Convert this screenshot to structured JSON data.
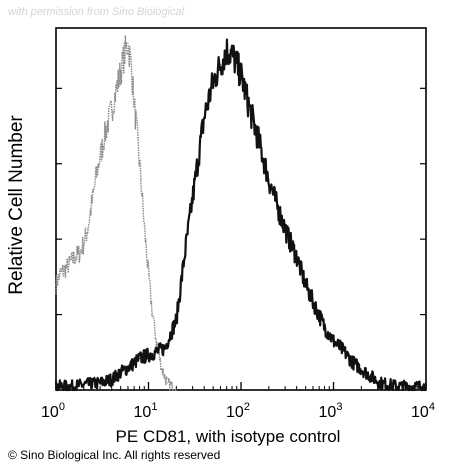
{
  "watermark": "with permission from Sino Biological",
  "copyright": "© Sino Biological Inc. All rights reserved",
  "chart_data": {
    "type": "line",
    "title": "",
    "xlabel": "PE CD81, with isotype control",
    "ylabel": "Relative Cell Number",
    "x_scale": "log",
    "xlim": [
      1,
      10000
    ],
    "ylim": [
      0,
      1
    ],
    "grid": false,
    "x_ticks": [
      {
        "value": 1,
        "base": "10",
        "exp": "0"
      },
      {
        "value": 10,
        "base": "10",
        "exp": "1"
      },
      {
        "value": 100,
        "base": "10",
        "exp": "2"
      },
      {
        "value": 1000,
        "base": "10",
        "exp": "3"
      },
      {
        "value": 10000,
        "base": "10",
        "exp": "4"
      }
    ],
    "series": [
      {
        "role": "isotype-control",
        "color": "#8a8a8a",
        "x": [
          1.0,
          1.1,
          1.2,
          1.4,
          1.6,
          1.8,
          2.0,
          2.2,
          2.5,
          2.8,
          3.2,
          3.6,
          4.0,
          4.5,
          5.0,
          5.5,
          6.0,
          6.5,
          7.0,
          7.6,
          8.3,
          9.0,
          10.0,
          11.0,
          12.5,
          14.0,
          16.0,
          18.0,
          20.0
        ],
        "y": [
          0.3,
          0.33,
          0.34,
          0.36,
          0.38,
          0.39,
          0.42,
          0.46,
          0.55,
          0.63,
          0.7,
          0.76,
          0.8,
          0.86,
          0.91,
          0.96,
          0.99,
          0.93,
          0.82,
          0.72,
          0.6,
          0.47,
          0.33,
          0.22,
          0.12,
          0.06,
          0.02,
          0.01,
          0.0
        ]
      },
      {
        "role": "pe-cd81",
        "color": "#111111",
        "x": [
          1.0,
          1.5,
          2.0,
          3.0,
          4.0,
          5.0,
          6.5,
          8.0,
          10.0,
          12.5,
          15.0,
          20.0,
          25.0,
          32.0,
          40.0,
          50.0,
          60.0,
          70.0,
          80.0,
          100.0,
          125.0,
          160.0,
          200.0,
          250.0,
          320.0,
          400.0,
          500.0,
          630.0,
          800.0,
          1000.0,
          1300.0,
          1600.0,
          2000.0,
          2500.0,
          3200.0,
          4000.0,
          5000.0,
          6500.0,
          8000.0,
          10000.0
        ],
        "y": [
          0.01,
          0.01,
          0.015,
          0.02,
          0.03,
          0.05,
          0.07,
          0.09,
          0.1,
          0.11,
          0.12,
          0.2,
          0.4,
          0.6,
          0.78,
          0.88,
          0.93,
          0.97,
          0.96,
          0.9,
          0.8,
          0.7,
          0.6,
          0.52,
          0.44,
          0.38,
          0.3,
          0.24,
          0.18,
          0.14,
          0.11,
          0.08,
          0.06,
          0.04,
          0.02,
          0.015,
          0.01,
          0.01,
          0.01,
          0.01
        ]
      }
    ]
  }
}
